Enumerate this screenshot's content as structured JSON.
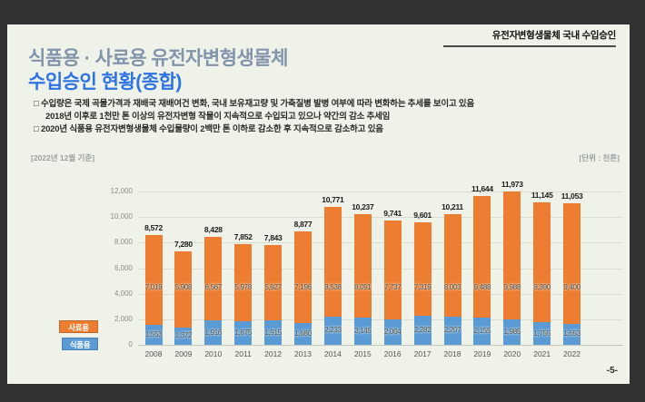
{
  "page": {
    "background": "#323232",
    "slide_background": "#eef2e8",
    "page_number": "-5-"
  },
  "header": {
    "kicker": "유전자변형생물체 국내 수입승인"
  },
  "title": {
    "line1": "식품용 · 사료용 유전자변형생물체",
    "line2": "수입승인 현황(종합)",
    "line1_color": "#8294ac",
    "line2_color": "#2d73e3"
  },
  "bullets": {
    "0": {
      "marker": "□",
      "line1": "수입량은 국제 곡물가격과 재배국 재배여건 변화, 국내 보유재고량 및 가축질병 발병 여부에 따라 변화하는 추세를 보이고 있음",
      "line2": "2018년 이후로 1천만 톤 이상의 유전자변형 작물이 지속적으로 수입되고 있으나 약간의 감소 추세임"
    },
    "1": {
      "marker": "□",
      "line1": "2020년 식품용 유전자변형생물체 수입물량이 2백만 톤 이하로 감소한 후 지속적으로 감소하고 있음"
    }
  },
  "chart_meta": {
    "basis": "[2022년 12월 기준]",
    "unit": "[단위 : 천톤]"
  },
  "legend": {
    "feed": {
      "label": "사료용",
      "color": "#ed7d31"
    },
    "food": {
      "label": "식품용",
      "color": "#5b9bd5"
    }
  },
  "chart_data": {
    "type": "bar",
    "stacked": true,
    "title": "",
    "xlabel": "",
    "ylabel": "",
    "unit": "천톤",
    "ylim": [
      0,
      12000
    ],
    "ytick_step": 2000,
    "grid": true,
    "legend_position": "left",
    "categories": [
      "2008",
      "2009",
      "2010",
      "2011",
      "2012",
      "2013",
      "2014",
      "2015",
      "2016",
      "2017",
      "2018",
      "2019",
      "2020",
      "2021",
      "2022"
    ],
    "series": [
      {
        "name": "식품용",
        "color": "#5b9bd5",
        "values": [
          1553,
          1372,
          1916,
          1875,
          1915,
          1680,
          2233,
          2145,
          2004,
          2282,
          2207,
          2155,
          1985,
          1755,
          1653
        ]
      },
      {
        "name": "사료용",
        "color": "#ed7d31",
        "values": [
          7019,
          5908,
          6567,
          5978,
          5927,
          7196,
          8538,
          8091,
          7737,
          7319,
          8003,
          9488,
          9988,
          9390,
          9400
        ]
      }
    ],
    "total_labels": [
      8572,
      7280,
      8428,
      7852,
      7843,
      8877,
      10771,
      10237,
      9741,
      9601,
      10211,
      11644,
      11973,
      11145,
      11053
    ]
  }
}
